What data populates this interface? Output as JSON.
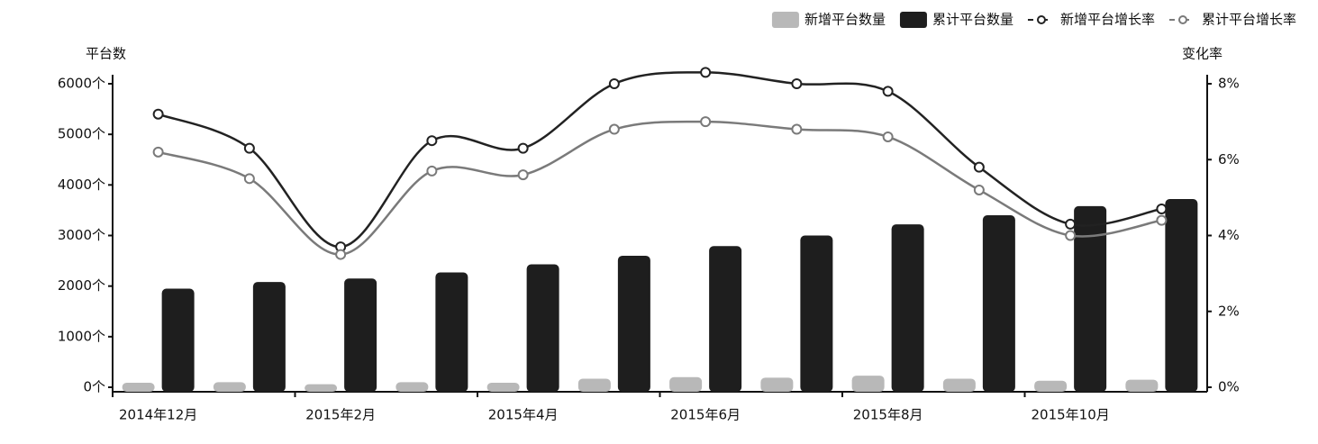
{
  "chart_data": {
    "type": "bar",
    "categories": [
      "2014年12月",
      null,
      "2015年2月",
      null,
      "2015年4月",
      null,
      "2015年6月",
      null,
      "2015年8月",
      null,
      "2015年10月",
      null
    ],
    "series": [
      {
        "name": "新增平台数量",
        "type": "bar",
        "color": "#b8b8b8",
        "values": [
          90,
          100,
          60,
          100,
          90,
          170,
          200,
          190,
          230,
          170,
          130,
          150
        ]
      },
      {
        "name": "累计平台数量",
        "type": "bar",
        "color": "#1e1e1e",
        "values": [
          1950,
          2080,
          2150,
          2270,
          2430,
          2600,
          2790,
          3000,
          3220,
          3400,
          3580,
          3720
        ]
      },
      {
        "name": "新增平台增长率",
        "type": "line",
        "axis": "y2",
        "color": "#222222",
        "values": [
          7.2,
          6.3,
          3.7,
          6.5,
          6.3,
          8.0,
          8.3,
          8.0,
          7.8,
          5.8,
          4.3,
          4.7
        ]
      },
      {
        "name": "累计平台增长率",
        "type": "line",
        "axis": "y2",
        "color": "#7a7a7a",
        "values": [
          6.2,
          5.5,
          3.5,
          5.7,
          5.6,
          6.8,
          7.0,
          6.8,
          6.6,
          5.2,
          4.0,
          4.4
        ]
      }
    ],
    "ylabel": "平台数",
    "y2label": "变化率",
    "ylim": [
      0,
      6000
    ],
    "yticks": [
      {
        "value": 0,
        "label": "0个"
      },
      {
        "value": 1000,
        "label": "1000个"
      },
      {
        "value": 2000,
        "label": "2000个"
      },
      {
        "value": 3000,
        "label": "3000个"
      },
      {
        "value": 4000,
        "label": "4000个"
      },
      {
        "value": 5000,
        "label": "5000个"
      },
      {
        "value": 6000,
        "label": "6000个"
      }
    ],
    "y2lim": [
      0,
      8
    ],
    "y2ticks": [
      {
        "value": 0,
        "label": "0%"
      },
      {
        "value": 2,
        "label": "2%"
      },
      {
        "value": 4,
        "label": "4%"
      },
      {
        "value": 6,
        "label": "6%"
      },
      {
        "value": 8,
        "label": "8%"
      }
    ],
    "legend": "top-right"
  }
}
